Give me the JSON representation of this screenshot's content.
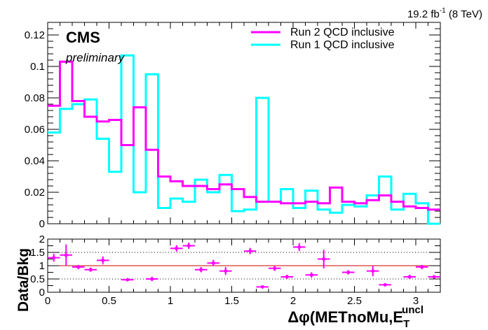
{
  "lumi_label": {
    "main": "19.2 fb",
    "sup": "-1",
    "tail": " (8 TeV)"
  },
  "experiment_label": "CMS",
  "status_label": "preliminary",
  "x_axis_label": {
    "main": "Δφ(METnoMu,E",
    "sub": "T",
    "sup": "uncl"
  },
  "ratio_ylabel": "Data/Bkg",
  "colors": {
    "run2": "#ff00ff",
    "run1": "#00ffff",
    "unity_line": "#cc0000",
    "axis": "#000000"
  },
  "chart_data": [
    {
      "type": "line",
      "subtype": "step-histogram",
      "xlim": [
        0,
        3.2
      ],
      "ylim": [
        0,
        0.128
      ],
      "xticks": [
        0,
        0.5,
        1,
        1.5,
        2,
        2.5,
        3
      ],
      "xtick_labels": [
        "0",
        "0.5",
        "1",
        "1.5",
        "2",
        "2.5",
        "3"
      ],
      "yticks": [
        0,
        0.02,
        0.04,
        0.06,
        0.08,
        0.1,
        0.12
      ],
      "ytick_labels": [
        "0",
        "0.02",
        "0.04",
        "0.06",
        "0.08",
        "0.1",
        "0.12"
      ],
      "bin_edges": [
        0,
        0.1,
        0.2,
        0.3,
        0.4,
        0.5,
        0.6,
        0.7,
        0.8,
        0.9,
        1.0,
        1.1,
        1.2,
        1.3,
        1.4,
        1.5,
        1.6,
        1.7,
        1.8,
        1.9,
        2.0,
        2.1,
        2.2,
        2.3,
        2.4,
        2.5,
        2.6,
        2.7,
        2.8,
        2.9,
        3.0,
        3.1,
        3.2
      ],
      "legend_position": "top-right",
      "series": [
        {
          "name": "Run 2 QCD inclusive",
          "color": "#ff00ff",
          "values": [
            0.075,
            0.103,
            0.078,
            0.068,
            0.065,
            0.066,
            0.05,
            0.074,
            0.047,
            0.03,
            0.027,
            0.024,
            0.024,
            0.022,
            0.025,
            0.022,
            0.017,
            0.014,
            0.014,
            0.013,
            0.013,
            0.014,
            0.013,
            0.023,
            0.014,
            0.013,
            0.015,
            0.018,
            0.014,
            0.011,
            0.01,
            0.009
          ]
        },
        {
          "name": "Run 1 QCD inclusive",
          "color": "#00ffff",
          "values": [
            0.058,
            0.073,
            0.076,
            0.079,
            0.054,
            0.033,
            0.107,
            0.02,
            0.095,
            0.01,
            0.016,
            0.014,
            0.028,
            0.02,
            0.031,
            0.008,
            0.009,
            0.08,
            0.014,
            0.022,
            0.01,
            0.021,
            0.009,
            0.007,
            0.012,
            0.011,
            0.018,
            0.03,
            0.009,
            0.019,
            0.013,
            0.0
          ]
        }
      ]
    },
    {
      "type": "scatter",
      "subtype": "ratio-with-errors",
      "xlim": [
        0,
        3.2
      ],
      "ylim": [
        0,
        2
      ],
      "yticks": [
        0,
        0.5,
        1,
        1.5,
        2
      ],
      "ytick_labels": [
        "0",
        "0.5",
        "1",
        "1.5",
        "2"
      ],
      "xticks": [
        0,
        0.5,
        1,
        1.5,
        2,
        2.5,
        3
      ],
      "xtick_labels": [
        "0",
        "0.5",
        "1",
        "1.5",
        "2",
        "2.5",
        "3"
      ],
      "reference_lines": [
        0.5,
        1,
        1.5
      ],
      "points": [
        {
          "x": 0.05,
          "y": 1.3,
          "err": 0.15
        },
        {
          "x": 0.15,
          "y": 1.4,
          "err": 0.4
        },
        {
          "x": 0.25,
          "y": 0.95,
          "err": 0.08
        },
        {
          "x": 0.35,
          "y": 0.85,
          "err": 0.08
        },
        {
          "x": 0.45,
          "y": 1.2,
          "err": 0.15
        },
        {
          "x": 0.65,
          "y": 0.47,
          "err": 0.05
        },
        {
          "x": 0.85,
          "y": 0.5,
          "err": 0.08
        },
        {
          "x": 1.05,
          "y": 1.65,
          "err": 0.12
        },
        {
          "x": 1.15,
          "y": 1.75,
          "err": 0.12
        },
        {
          "x": 1.25,
          "y": 0.85,
          "err": 0.1
        },
        {
          "x": 1.35,
          "y": 1.1,
          "err": 0.12
        },
        {
          "x": 1.45,
          "y": 0.8,
          "err": 0.15
        },
        {
          "x": 1.65,
          "y": 1.55,
          "err": 0.12
        },
        {
          "x": 1.75,
          "y": 0.2,
          "err": 0.04
        },
        {
          "x": 1.85,
          "y": 0.9,
          "err": 0.1
        },
        {
          "x": 1.95,
          "y": 0.58,
          "err": 0.08
        },
        {
          "x": 2.05,
          "y": 1.7,
          "err": 0.15
        },
        {
          "x": 2.15,
          "y": 0.65,
          "err": 0.1
        },
        {
          "x": 2.25,
          "y": 1.25,
          "err": 0.35
        },
        {
          "x": 2.45,
          "y": 0.75,
          "err": 0.08
        },
        {
          "x": 2.65,
          "y": 0.8,
          "err": 0.2
        },
        {
          "x": 2.75,
          "y": 0.28,
          "err": 0.05
        },
        {
          "x": 2.95,
          "y": 0.58,
          "err": 0.08
        },
        {
          "x": 3.05,
          "y": 0.95,
          "err": 0.08
        },
        {
          "x": 3.15,
          "y": 0.58,
          "err": 0.04
        }
      ]
    }
  ]
}
